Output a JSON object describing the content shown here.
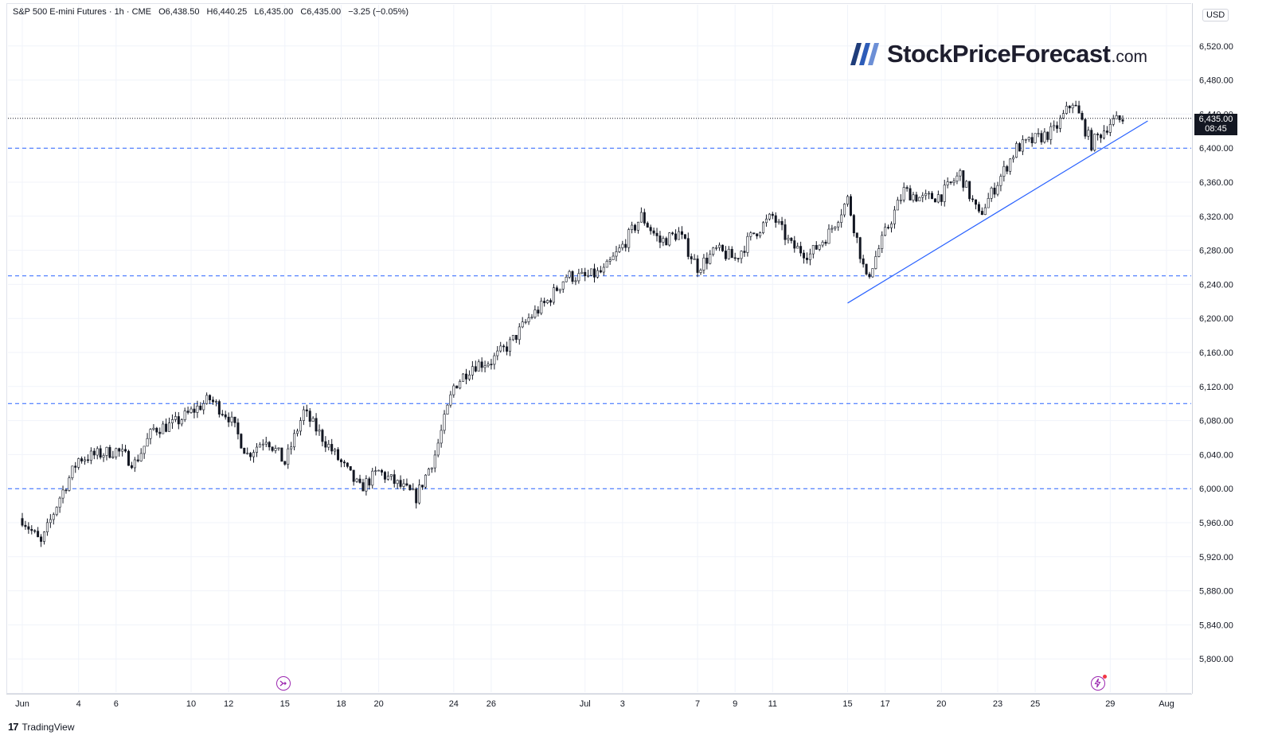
{
  "header": {
    "symbol": "S&P 500 E-mini Futures · 1h · CME",
    "open": "O6,438.50",
    "high": "H6,440.25",
    "low": "L6,435.00",
    "close": "C6,435.00",
    "change": "−3.25 (−0.05%)"
  },
  "price_axis": {
    "currency": "USD",
    "last_price": "6,435.00",
    "countdown": "08:45"
  },
  "watermark": {
    "brand": "StockPriceForecast",
    "tld": ".com"
  },
  "footer": {
    "brand": "TradingView"
  },
  "colors": {
    "candle": "#131722",
    "levels": "#2962ff",
    "trendline": "#2962ff",
    "grid": "#f0f3fa",
    "last_tag": "#131722"
  },
  "icons": [
    "replay-icon",
    "lightning-alert-icon",
    "tradingview-logo-icon"
  ],
  "chart_data": {
    "type": "candlestick",
    "title": "S&P 500 E-mini Futures",
    "timeframe": "1h",
    "ylim": [
      5760,
      6560
    ],
    "y_ticks": [
      5800,
      5840,
      5880,
      5920,
      5960,
      6000,
      6040,
      6080,
      6120,
      6160,
      6200,
      6240,
      6280,
      6320,
      6360,
      6400,
      6440,
      6480,
      6520
    ],
    "y_tick_labels": [
      "5,800.00",
      "5,840.00",
      "5,880.00",
      "5,920.00",
      "5,960.00",
      "6,000.00",
      "6,040.00",
      "6,080.00",
      "6,120.00",
      "6,160.00",
      "6,200.00",
      "6,240.00",
      "6,280.00",
      "6,320.00",
      "6,360.00",
      "6,400.00",
      "6,440.00",
      "6,480.00",
      "6,520.00"
    ],
    "x_tick_labels": [
      "Jun",
      "4",
      "6",
      "10",
      "12",
      "15",
      "18",
      "20",
      "24",
      "26",
      "Jul",
      "3",
      "7",
      "9",
      "11",
      "15",
      "17",
      "20",
      "23",
      "25",
      "29",
      "Aug"
    ],
    "x_tick_dates": [
      "2025-06-01",
      "2025-06-04",
      "2025-06-06",
      "2025-06-10",
      "2025-06-12",
      "2025-06-15",
      "2025-06-18",
      "2025-06-20",
      "2025-06-24",
      "2025-06-26",
      "2025-07-01",
      "2025-07-03",
      "2025-07-07",
      "2025-07-09",
      "2025-07-11",
      "2025-07-15",
      "2025-07-17",
      "2025-07-20",
      "2025-07-23",
      "2025-07-25",
      "2025-07-29",
      "2025-08-01"
    ],
    "horizontal_levels": [
      6400,
      6250,
      6100,
      6000
    ],
    "last_price": 6435.0,
    "trendline": [
      {
        "date": "2025-07-15",
        "price": 6218
      },
      {
        "date": "2025-07-31",
        "price": 6432
      }
    ],
    "price_path": [
      {
        "date": "2025-06-01",
        "price": 5965
      },
      {
        "date": "2025-06-02",
        "price": 5935
      },
      {
        "date": "2025-06-03",
        "price": 5990
      },
      {
        "date": "2025-06-04",
        "price": 6035
      },
      {
        "date": "2025-06-05",
        "price": 6040
      },
      {
        "date": "2025-06-06",
        "price": 6045
      },
      {
        "date": "2025-06-07",
        "price": 6030
      },
      {
        "date": "2025-06-08",
        "price": 6070
      },
      {
        "date": "2025-06-09",
        "price": 6075
      },
      {
        "date": "2025-06-10",
        "price": 6090
      },
      {
        "date": "2025-06-11",
        "price": 6105
      },
      {
        "date": "2025-06-12",
        "price": 6085
      },
      {
        "date": "2025-06-13",
        "price": 6040
      },
      {
        "date": "2025-06-14",
        "price": 6060
      },
      {
        "date": "2025-06-15",
        "price": 6030
      },
      {
        "date": "2025-06-16",
        "price": 6090
      },
      {
        "date": "2025-06-17",
        "price": 6060
      },
      {
        "date": "2025-06-18",
        "price": 6030
      },
      {
        "date": "2025-06-19",
        "price": 6000
      },
      {
        "date": "2025-06-20",
        "price": 6020
      },
      {
        "date": "2025-06-21",
        "price": 6005
      },
      {
        "date": "2025-06-22",
        "price": 5990
      },
      {
        "date": "2025-06-23",
        "price": 6040
      },
      {
        "date": "2025-06-24",
        "price": 6120
      },
      {
        "date": "2025-06-25",
        "price": 6145
      },
      {
        "date": "2025-06-26",
        "price": 6150
      },
      {
        "date": "2025-06-27",
        "price": 6170
      },
      {
        "date": "2025-06-28",
        "price": 6200
      },
      {
        "date": "2025-06-29",
        "price": 6220
      },
      {
        "date": "2025-06-30",
        "price": 6250
      },
      {
        "date": "2025-07-01",
        "price": 6248
      },
      {
        "date": "2025-07-02",
        "price": 6255
      },
      {
        "date": "2025-07-03",
        "price": 6285
      },
      {
        "date": "2025-07-04",
        "price": 6320
      },
      {
        "date": "2025-07-05",
        "price": 6290
      },
      {
        "date": "2025-07-06",
        "price": 6300
      },
      {
        "date": "2025-07-07",
        "price": 6260
      },
      {
        "date": "2025-07-08",
        "price": 6280
      },
      {
        "date": "2025-07-09",
        "price": 6270
      },
      {
        "date": "2025-07-10",
        "price": 6300
      },
      {
        "date": "2025-07-11",
        "price": 6320
      },
      {
        "date": "2025-07-12",
        "price": 6285
      },
      {
        "date": "2025-07-13",
        "price": 6275
      },
      {
        "date": "2025-07-14",
        "price": 6300
      },
      {
        "date": "2025-07-15",
        "price": 6340
      },
      {
        "date": "2025-07-16",
        "price": 6245
      },
      {
        "date": "2025-07-17",
        "price": 6300
      },
      {
        "date": "2025-07-18",
        "price": 6350
      },
      {
        "date": "2025-07-19",
        "price": 6340
      },
      {
        "date": "2025-07-20",
        "price": 6345
      },
      {
        "date": "2025-07-21",
        "price": 6370
      },
      {
        "date": "2025-07-22",
        "price": 6320
      },
      {
        "date": "2025-07-23",
        "price": 6360
      },
      {
        "date": "2025-07-24",
        "price": 6400
      },
      {
        "date": "2025-07-25",
        "price": 6410
      },
      {
        "date": "2025-07-26",
        "price": 6420
      },
      {
        "date": "2025-07-27",
        "price": 6455
      },
      {
        "date": "2025-07-28",
        "price": 6405
      },
      {
        "date": "2025-07-29",
        "price": 6430
      },
      {
        "date": "2025-07-29T20:00",
        "price": 6435
      }
    ]
  }
}
